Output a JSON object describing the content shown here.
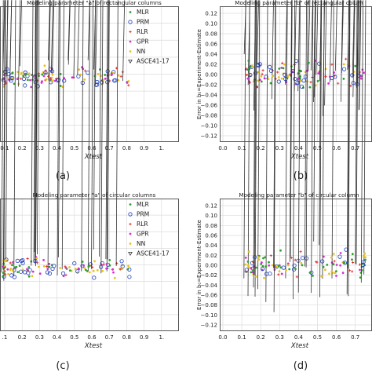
{
  "chart_data": [
    {
      "type": "scatter",
      "panel_label": "(a)",
      "title": "Modeling parameter \"a\" of rectangular columns",
      "xlabel": "Xtest",
      "ylabel": "",
      "xlim": [
        0.1,
        1.0
      ],
      "x_ticks": [
        "0.1",
        "0.2",
        "0.3",
        "0.4",
        "0.5",
        "0.6",
        "0.7",
        "0.8",
        "0.9",
        "1."
      ],
      "y_ticks": [],
      "grid": true,
      "legend_position": "top-right",
      "legend": [
        "MLR",
        "PRM",
        "RLR",
        "GPR",
        "NN",
        "ASCE41-17"
      ]
    },
    {
      "type": "scatter",
      "panel_label": "(b)",
      "title": "Modeling parameter \"b\" of rectangular colum",
      "xlabel": "Xtest",
      "ylabel": "Error in b₀=Experiment-Estimate",
      "xlim": [
        0.0,
        0.8
      ],
      "ylim": [
        -0.12,
        0.12
      ],
      "x_ticks": [
        "0.0",
        "0.1",
        "0.2",
        "0.3",
        "0.4",
        "0.5",
        "0.6",
        "0.7"
      ],
      "y_ticks": [
        "0.12",
        "0.10",
        "0.08",
        "0.06",
        "0.04",
        "0.02",
        "0.00",
        "−0.02",
        "−0.04",
        "−0.06",
        "−0.08",
        "−0.10",
        "−0.12"
      ],
      "grid": true
    },
    {
      "type": "scatter",
      "panel_label": "(c)",
      "title": "Modeling parameter \"a\" of circular columns",
      "xlabel": "Xtest",
      "ylabel": "",
      "xlim": [
        0.1,
        1.0
      ],
      "x_ticks": [
        ".1",
        "0.2",
        "0.3",
        "0.4",
        "0.5",
        "0.6",
        "0.7",
        "0.8",
        "0.9",
        "1."
      ],
      "y_ticks": [],
      "grid": true,
      "legend_position": "top-right",
      "legend": [
        "MLR",
        "PRM",
        "RLR",
        "GPR",
        "NN",
        "ASCE41-17"
      ]
    },
    {
      "type": "scatter",
      "panel_label": "(d)",
      "title": "Modeling parameter \"b\" of circular column",
      "xlabel": "Xtest",
      "ylabel": "Error in b₀=Experiment-Estimate",
      "xlim": [
        0.0,
        0.8
      ],
      "ylim": [
        -0.12,
        0.12
      ],
      "x_ticks": [
        "0.0",
        "0.1",
        "0.2",
        "0.3",
        "0.4",
        "0.5",
        "0.6",
        "0.7"
      ],
      "y_ticks": [
        "0.12",
        "0.10",
        "0.08",
        "0.06",
        "0.04",
        "0.02",
        "0.00",
        "−0.02",
        "−0.04",
        "−0.06",
        "−0.08",
        "−0.10",
        "−0.12"
      ],
      "grid": true
    }
  ],
  "series_styles": [
    {
      "name": "MLR",
      "marker": "dot",
      "color": "#2ca02c"
    },
    {
      "name": "PRM",
      "marker": "circle-open",
      "color": "#1f3fbf"
    },
    {
      "name": "RLR",
      "marker": "star",
      "color": "#e0302a"
    },
    {
      "name": "GPR",
      "marker": "dot",
      "color": "#d62fd6"
    },
    {
      "name": "NN",
      "marker": "dot",
      "color": "#e8c21a"
    },
    {
      "name": "ASCE41-17",
      "marker": "triangle-down-open",
      "color": "#333333"
    }
  ]
}
